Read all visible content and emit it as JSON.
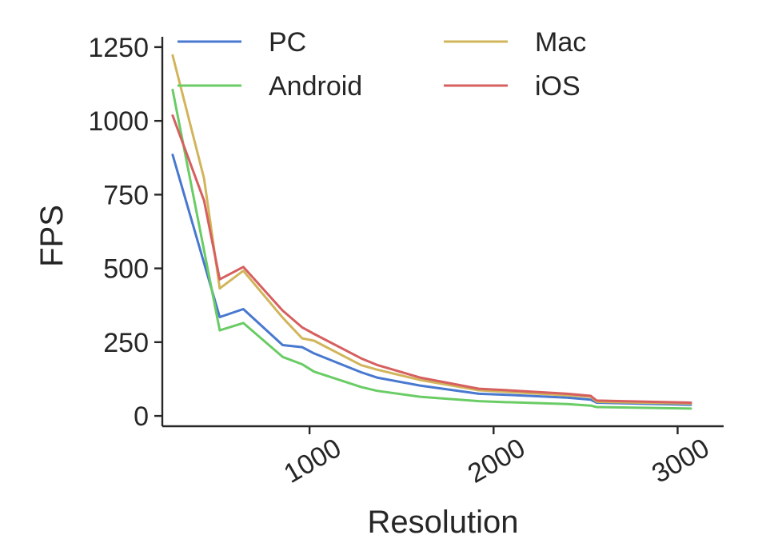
{
  "chart_data": {
    "type": "line",
    "xlabel": "Resolution",
    "ylabel": "FPS",
    "xlim": [
      200,
      3250
    ],
    "ylim": [
      -35,
      1285
    ],
    "xticks": [
      1000,
      2000,
      3000
    ],
    "xtick_labels": [
      "1000",
      "2000",
      "3000"
    ],
    "yticks": [
      0,
      250,
      500,
      750,
      1000,
      1250
    ],
    "ytick_labels": [
      "0",
      "250",
      "500",
      "750",
      "1000",
      "1250"
    ],
    "grid": false,
    "legend_position": "top",
    "series": [
      {
        "name": "PC",
        "color": "#4878cf",
        "x": [
          256,
          512,
          640,
          854,
          960,
          1024,
          1280,
          1366,
          1600,
          1920,
          2048,
          2400,
          2528,
          2560,
          3072
        ],
        "y": [
          885,
          335,
          362,
          240,
          233,
          212,
          148,
          130,
          103,
          75,
          72,
          62,
          55,
          45,
          38
        ]
      },
      {
        "name": "Mac",
        "color": "#d2b55b",
        "x": [
          256,
          427,
          512,
          640,
          854,
          960,
          1024,
          1280,
          1366,
          1600,
          1920,
          2048,
          2400,
          2528,
          2560,
          3072
        ],
        "y": [
          1222,
          805,
          432,
          492,
          333,
          263,
          255,
          172,
          157,
          122,
          87,
          82,
          70,
          65,
          48,
          42
        ]
      },
      {
        "name": "Android",
        "color": "#6acc65",
        "x": [
          256,
          512,
          640,
          854,
          960,
          1024,
          1280,
          1366,
          1600,
          1920,
          2048,
          2400,
          2528,
          2560,
          3072
        ],
        "y": [
          1105,
          290,
          315,
          200,
          175,
          150,
          98,
          85,
          65,
          50,
          47,
          40,
          35,
          30,
          25
        ]
      },
      {
        "name": "iOS",
        "color": "#d65f5f",
        "x": [
          256,
          427,
          512,
          640,
          854,
          960,
          1024,
          1280,
          1366,
          1600,
          1920,
          2048,
          2400,
          2528,
          2560,
          3072
        ],
        "y": [
          1018,
          730,
          463,
          505,
          357,
          300,
          278,
          195,
          173,
          130,
          92,
          88,
          75,
          68,
          52,
          45
        ]
      }
    ]
  }
}
